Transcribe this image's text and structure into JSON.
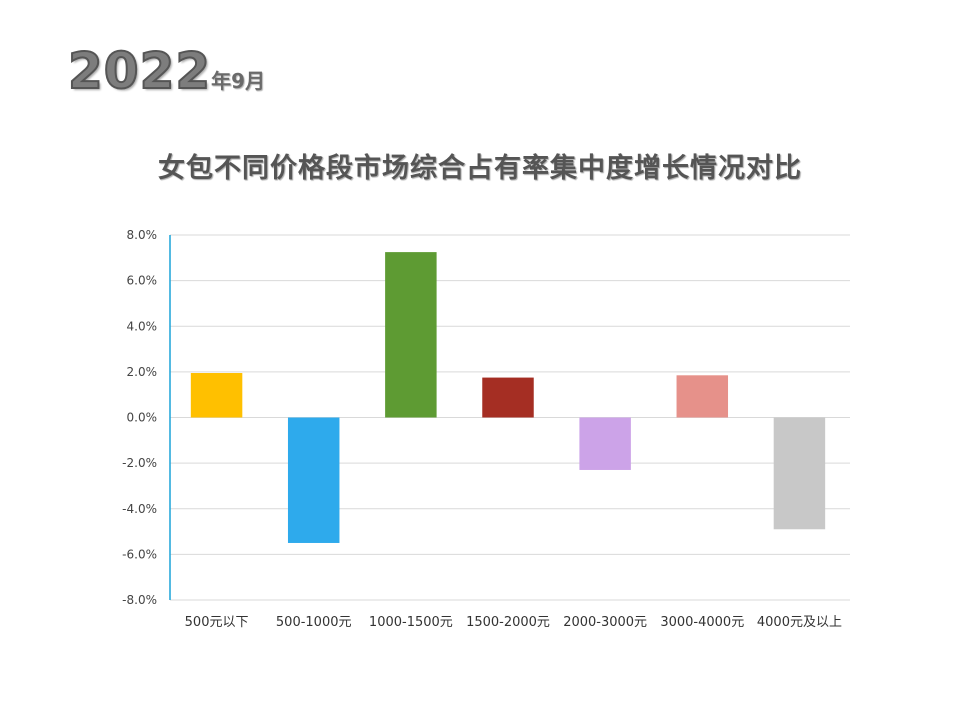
{
  "header": {
    "year": "2022",
    "month_label": "年9月"
  },
  "colors": {
    "axis": "#1aa3d9",
    "grid": "#d9d9d9"
  },
  "chart_data": {
    "type": "bar",
    "title": "女包不同价格段市场综合占有率集中度增长情况对比",
    "xlabel": "",
    "ylabel": "",
    "ylim": [
      -8.0,
      8.0
    ],
    "yticks": [
      8.0,
      6.0,
      4.0,
      2.0,
      0.0,
      -2.0,
      -4.0,
      -6.0,
      -8.0
    ],
    "ytick_labels": [
      "8.0%",
      "6.0%",
      "4.0%",
      "2.0%",
      "0.0%",
      "-2.0%",
      "-4.0%",
      "-6.0%",
      "-8.0%"
    ],
    "grid": true,
    "legend": "none",
    "categories": [
      "500元以下",
      "500-1000元",
      "1000-1500元",
      "1500-2000元",
      "2000-3000元",
      "3000-4000元",
      "4000元及以上"
    ],
    "values": [
      1.95,
      -5.5,
      7.25,
      1.75,
      -2.3,
      1.85,
      -4.9
    ],
    "bar_colors": [
      "#ffc000",
      "#2eaaec",
      "#5e9b33",
      "#a52e23",
      "#cca3e8",
      "#e6918a",
      "#c8c8c8"
    ]
  }
}
